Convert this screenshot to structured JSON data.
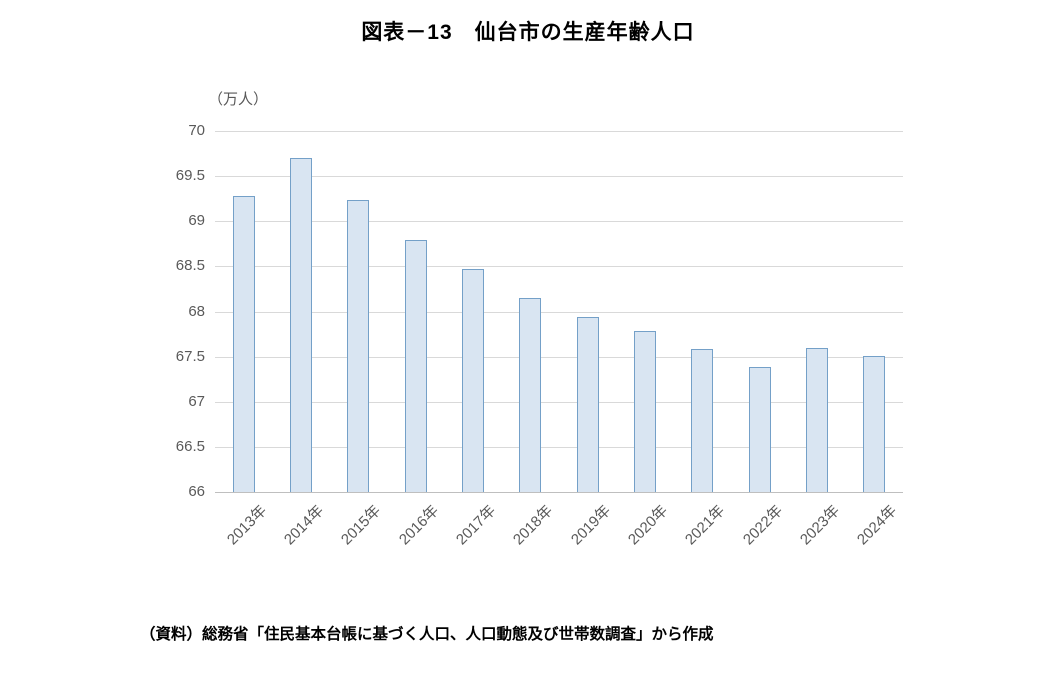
{
  "title": "図表－13　仙台市の生産年齢人口",
  "unit_label": "（万人）",
  "source": "（資料）総務省「住民基本台帳に基づく人口、人口動態及び世帯数調査」から作成",
  "chart_data": {
    "type": "bar",
    "title": "図表－13　仙台市の生産年齢人口",
    "categories": [
      "2013年",
      "2014年",
      "2015年",
      "2016年",
      "2017年",
      "2018年",
      "2019年",
      "2020年",
      "2021年",
      "2022年",
      "2023年",
      "2024年"
    ],
    "values": [
      69.28,
      69.7,
      69.23,
      68.79,
      68.47,
      68.15,
      67.94,
      67.78,
      67.58,
      67.38,
      67.6,
      67.51
    ],
    "xlabel": "",
    "ylabel": "（万人）",
    "ylim": [
      66,
      70
    ],
    "ytick_step": 0.5,
    "grid": true,
    "legend": "none",
    "bar_fill": "#d9e5f2",
    "bar_border": "#74a0c8",
    "gridline_color": "#d9d9d9",
    "axis_label_color": "#595959"
  }
}
